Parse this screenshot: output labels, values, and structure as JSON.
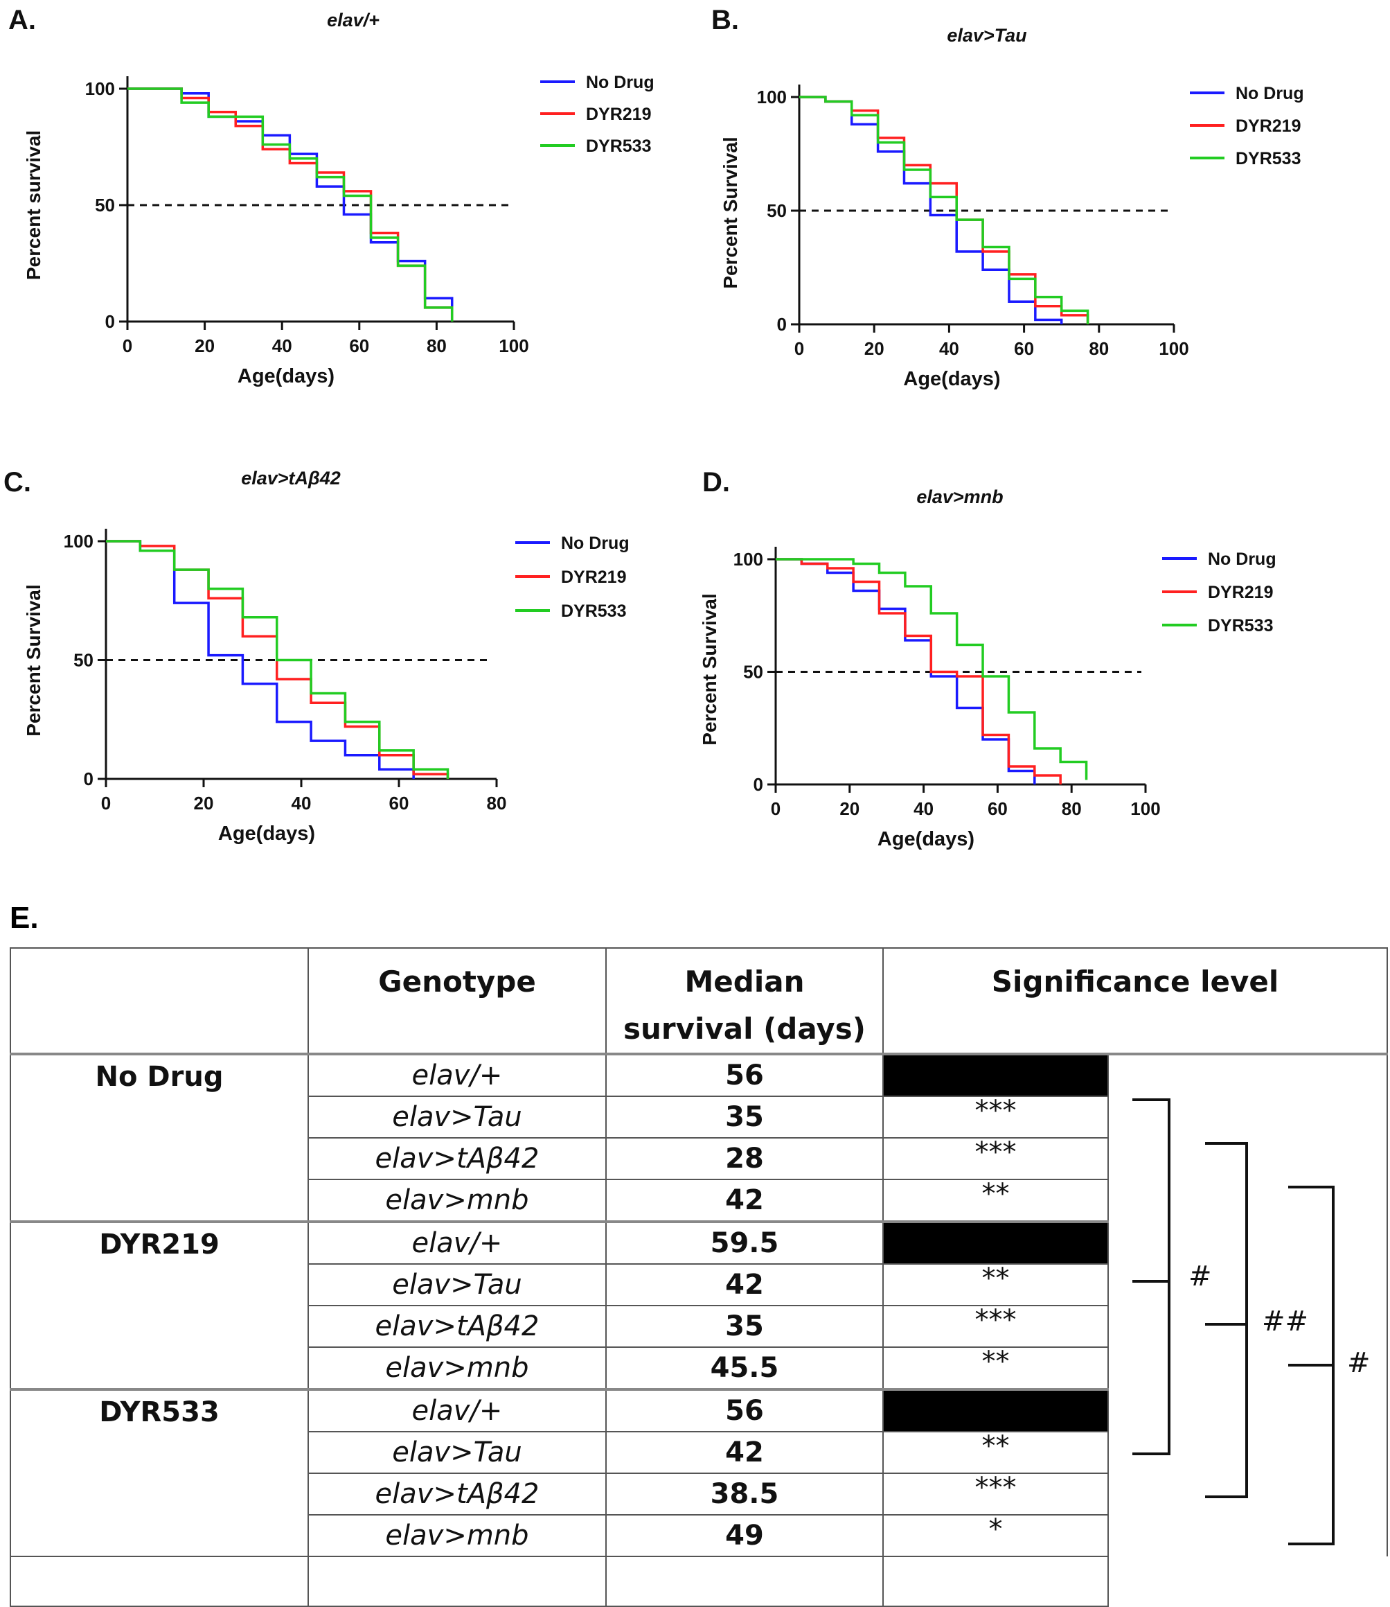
{
  "colors": {
    "no_drug": "#1a1aff",
    "dyr219": "#ff2020",
    "dyr533": "#22cc22",
    "axis": "#111111"
  },
  "chart_data": [
    {
      "panel": "A.",
      "type": "line",
      "title": "elav/+",
      "xlabel": "Age(days)",
      "ylabel": "Percent survival",
      "xlim": [
        0,
        100
      ],
      "ylim": [
        0,
        100
      ],
      "xticks": [
        "0",
        "20",
        "40",
        "60",
        "80",
        "100"
      ],
      "yticks": [
        "0",
        "50",
        "100"
      ],
      "reference_line": 50,
      "legend": [
        "No Drug",
        "DYR219",
        "DYR533"
      ],
      "series": [
        {
          "name": "No Drug",
          "x": [
            0,
            14,
            21,
            28,
            35,
            42,
            49,
            56,
            63,
            70,
            77,
            84
          ],
          "y": [
            100,
            98,
            88,
            86,
            80,
            72,
            58,
            46,
            34,
            26,
            10,
            0
          ]
        },
        {
          "name": "DYR219",
          "x": [
            0,
            14,
            21,
            28,
            35,
            42,
            49,
            56,
            63,
            70,
            77,
            84
          ],
          "y": [
            100,
            96,
            90,
            84,
            74,
            68,
            64,
            56,
            38,
            24,
            6,
            0
          ]
        },
        {
          "name": "DYR533",
          "x": [
            0,
            14,
            21,
            28,
            35,
            42,
            49,
            56,
            63,
            70,
            77,
            84
          ],
          "y": [
            100,
            94,
            88,
            88,
            76,
            70,
            62,
            54,
            36,
            24,
            6,
            0
          ]
        }
      ]
    },
    {
      "panel": "B.",
      "type": "line",
      "title": "elav>Tau",
      "xlabel": "Age(days)",
      "ylabel": "Percent Survival",
      "xlim": [
        0,
        100
      ],
      "ylim": [
        0,
        100
      ],
      "xticks": [
        "0",
        "20",
        "40",
        "60",
        "80",
        "100"
      ],
      "yticks": [
        "0",
        "50",
        "100"
      ],
      "reference_line": 50,
      "legend": [
        "No Drug",
        "DYR219",
        "DYR533"
      ],
      "series": [
        {
          "name": "No Drug",
          "x": [
            0,
            7,
            14,
            21,
            28,
            35,
            42,
            49,
            56,
            63,
            70
          ],
          "y": [
            100,
            98,
            88,
            76,
            62,
            48,
            32,
            24,
            10,
            2,
            0
          ]
        },
        {
          "name": "DYR219",
          "x": [
            0,
            7,
            14,
            21,
            28,
            35,
            42,
            49,
            56,
            63,
            70,
            77
          ],
          "y": [
            100,
            98,
            94,
            82,
            70,
            62,
            46,
            32,
            22,
            8,
            4,
            0
          ]
        },
        {
          "name": "DYR533",
          "x": [
            0,
            7,
            14,
            21,
            28,
            35,
            42,
            49,
            56,
            63,
            70,
            77
          ],
          "y": [
            100,
            98,
            92,
            80,
            68,
            56,
            46,
            34,
            20,
            12,
            6,
            0
          ]
        }
      ]
    },
    {
      "panel": "C.",
      "type": "line",
      "title": "elav>tAβ42",
      "xlabel": "Age(days)",
      "ylabel": "Percent Survival",
      "xlim": [
        0,
        80
      ],
      "ylim": [
        0,
        100
      ],
      "xticks": [
        "0",
        "20",
        "40",
        "60",
        "80"
      ],
      "yticks": [
        "0",
        "50",
        "100"
      ],
      "reference_line": 50,
      "legend": [
        "No Drug",
        "DYR219",
        "DYR533"
      ],
      "series": [
        {
          "name": "No Drug",
          "x": [
            0,
            7,
            14,
            21,
            28,
            35,
            42,
            49,
            56,
            63
          ],
          "y": [
            100,
            96,
            74,
            52,
            40,
            24,
            16,
            10,
            4,
            0
          ]
        },
        {
          "name": "DYR219",
          "x": [
            0,
            7,
            14,
            21,
            28,
            35,
            42,
            49,
            56,
            63,
            70
          ],
          "y": [
            100,
            98,
            88,
            76,
            60,
            42,
            32,
            22,
            10,
            2,
            0
          ]
        },
        {
          "name": "DYR533",
          "x": [
            0,
            7,
            14,
            21,
            28,
            35,
            42,
            49,
            56,
            63,
            70
          ],
          "y": [
            100,
            96,
            88,
            80,
            68,
            50,
            36,
            24,
            12,
            4,
            0
          ]
        }
      ]
    },
    {
      "panel": "D.",
      "type": "line",
      "title": "elav>mnb",
      "xlabel": "Age(days)",
      "ylabel": "Percent Survival",
      "xlim": [
        0,
        100
      ],
      "ylim": [
        0,
        100
      ],
      "xticks": [
        "0",
        "20",
        "40",
        "60",
        "80",
        "100"
      ],
      "yticks": [
        "0",
        "50",
        "100"
      ],
      "reference_line": 50,
      "legend": [
        "No Drug",
        "DYR219",
        "DYR533"
      ],
      "series": [
        {
          "name": "No Drug",
          "x": [
            0,
            7,
            14,
            21,
            28,
            35,
            42,
            49,
            56,
            63,
            70
          ],
          "y": [
            100,
            98,
            94,
            86,
            78,
            64,
            48,
            34,
            20,
            6,
            0
          ]
        },
        {
          "name": "DYR219",
          "x": [
            0,
            7,
            14,
            21,
            28,
            35,
            42,
            49,
            56,
            63,
            70,
            77
          ],
          "y": [
            100,
            98,
            96,
            90,
            76,
            66,
            50,
            48,
            22,
            8,
            4,
            0
          ]
        },
        {
          "name": "DYR533",
          "x": [
            0,
            7,
            14,
            21,
            28,
            35,
            42,
            49,
            56,
            63,
            70,
            77,
            84
          ],
          "y": [
            100,
            100,
            100,
            98,
            94,
            88,
            76,
            62,
            48,
            32,
            16,
            10,
            2
          ]
        }
      ]
    }
  ],
  "table": {
    "panel_label": "E.",
    "headers": {
      "genotype": "Genotype",
      "median_line1": "Median",
      "median_line2": "survival (days)",
      "significance": "Significance level"
    },
    "groups": [
      {
        "name": "No Drug",
        "rows": [
          {
            "genotype": "elav/+",
            "median": "56",
            "sig": "",
            "black": true
          },
          {
            "genotype": "elav>Tau",
            "median": "35",
            "sig": "***",
            "black": false
          },
          {
            "genotype": "elav>tAβ42",
            "median": "28",
            "sig": "***",
            "black": false
          },
          {
            "genotype": "elav>mnb",
            "median": "42",
            "sig": "**",
            "black": false
          }
        ]
      },
      {
        "name": "DYR219",
        "rows": [
          {
            "genotype": "elav/+",
            "median": "59.5",
            "sig": "",
            "black": true
          },
          {
            "genotype": "elav>Tau",
            "median": "42",
            "sig": "**",
            "black": false
          },
          {
            "genotype": "elav>tAβ42",
            "median": "35",
            "sig": "***",
            "black": false
          },
          {
            "genotype": "elav>mnb",
            "median": "45.5",
            "sig": "**",
            "black": false
          }
        ]
      },
      {
        "name": "DYR533",
        "rows": [
          {
            "genotype": "elav/+",
            "median": "56",
            "sig": "",
            "black": true
          },
          {
            "genotype": "elav>Tau",
            "median": "42",
            "sig": "**",
            "black": false
          },
          {
            "genotype": "elav>tAβ42",
            "median": "38.5",
            "sig": "***",
            "black": false
          },
          {
            "genotype": "elav>mnb",
            "median": "49",
            "sig": "*",
            "black": false
          }
        ]
      }
    ],
    "brackets": [
      {
        "label": "#"
      },
      {
        "label": "##"
      },
      {
        "label": "#"
      }
    ]
  }
}
